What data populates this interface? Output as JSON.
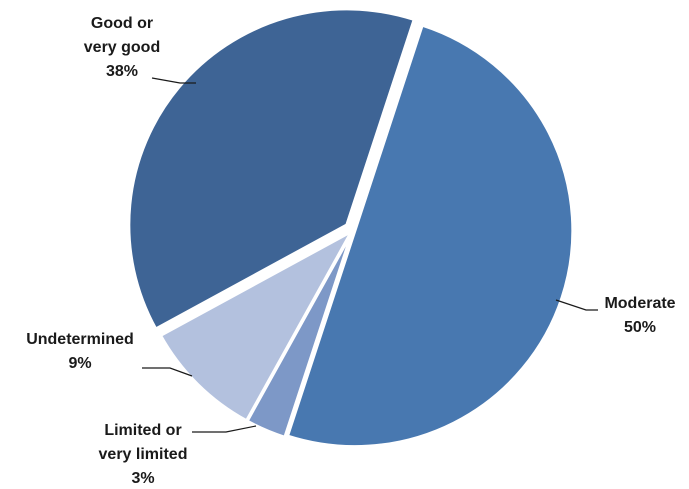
{
  "chart_data": {
    "type": "pie",
    "slices": [
      {
        "label_lines": [
          "Moderate"
        ],
        "pct_label": "50%",
        "value": 50,
        "color": "#4878b0"
      },
      {
        "label_lines": [
          "Limited or",
          "very limited"
        ],
        "pct_label": "3%",
        "value": 3,
        "color": "#7d98c7"
      },
      {
        "label_lines": [
          "Undetermined"
        ],
        "pct_label": "9%",
        "value": 9,
        "color": "#b3c1de"
      },
      {
        "label_lines": [
          "Good or",
          "very good"
        ],
        "pct_label": "38%",
        "value": 38,
        "color": "#3e6495"
      }
    ],
    "legend": "none"
  }
}
